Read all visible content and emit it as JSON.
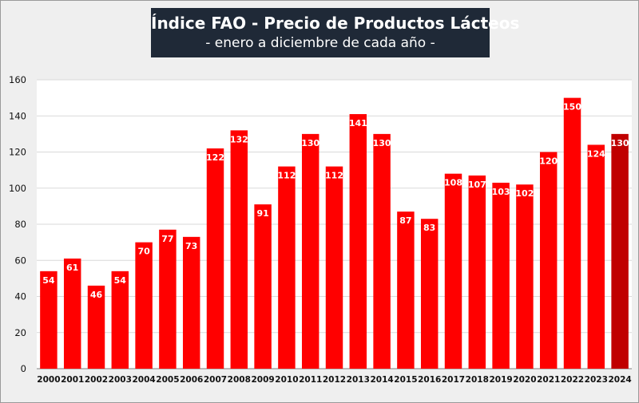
{
  "chart_data": {
    "type": "bar",
    "title": "Índice FAO - Precio de Productos Lácteos",
    "subtitle": "- enero a diciembre de cada año -",
    "categories": [
      "2000",
      "2001",
      "2002",
      "2003",
      "2004",
      "2005",
      "2006",
      "2007",
      "2008",
      "2009",
      "2010",
      "2011",
      "2012",
      "2013",
      "2014",
      "2015",
      "2016",
      "2017",
      "2018",
      "2019",
      "2020",
      "2021",
      "2022",
      "2023",
      "2024"
    ],
    "values": [
      54,
      61,
      46,
      54,
      70,
      77,
      73,
      122,
      132,
      91,
      112,
      130,
      112,
      141,
      130,
      87,
      83,
      108,
      107,
      103,
      102,
      120,
      150,
      124,
      130
    ],
    "ylim": [
      0,
      160
    ],
    "yticks": [
      0,
      20,
      40,
      60,
      80,
      100,
      120,
      140,
      160
    ],
    "grid": true,
    "colors": {
      "bar": "#ff0000",
      "highlight_bar": "#c00000",
      "highlight_category": "2024",
      "grid": "#d9d9d9",
      "plot_background": "#ffffff"
    }
  }
}
